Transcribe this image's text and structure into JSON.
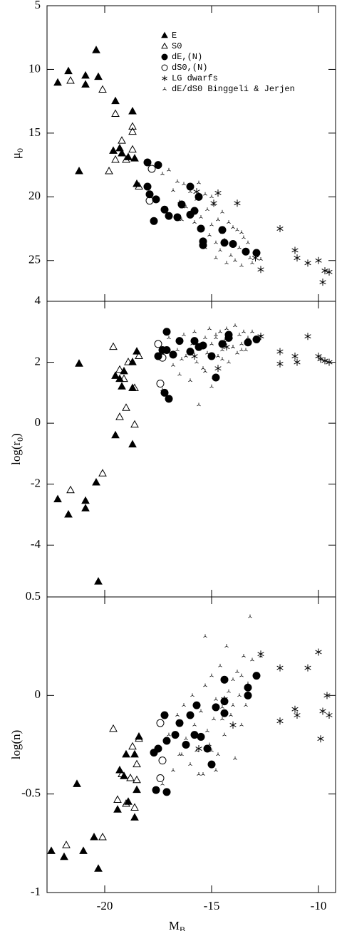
{
  "chart_data": [
    {
      "type": "scatter",
      "ylabel": {
        "text": "μ",
        "sub": "0"
      },
      "xlim": [
        -22.7,
        -9.2
      ],
      "ylim": [
        5,
        28.2
      ],
      "y_inverted": true,
      "yticks": [
        5,
        10,
        15,
        20,
        25
      ],
      "color": "#000000",
      "legend": "top",
      "series": [
        {
          "name": "E",
          "marker": "triangle",
          "filled": true,
          "x": [
            -22.2,
            -21.7,
            -20.9,
            -20.9,
            -20.4,
            -20.3,
            -21.2,
            -19.5,
            -19.6,
            -19.3,
            -19.2,
            -18.7,
            -18.9,
            -18.6,
            -18.5
          ],
          "values": [
            11.05,
            10.15,
            10.5,
            11.2,
            8.5,
            10.6,
            18.0,
            12.5,
            16.4,
            16.2,
            16.6,
            13.3,
            16.9,
            17.0,
            19.0
          ]
        },
        {
          "name": "S0",
          "marker": "triangle",
          "filled": false,
          "x": [
            -21.6,
            -20.1,
            -19.5,
            -19.2,
            -18.7,
            -18.7,
            -18.7,
            -19.0,
            -19.5,
            -19.8,
            -18.4
          ],
          "values": [
            10.9,
            11.6,
            13.5,
            15.6,
            14.5,
            14.9,
            16.3,
            17.1,
            17.1,
            18.0,
            19.2
          ]
        },
        {
          "name": "dE,(N)",
          "marker": "circle",
          "filled": true,
          "x": [
            -18.0,
            -17.5,
            -18.0,
            -17.9,
            -17.6,
            -17.7,
            -17.2,
            -17.0,
            -16.6,
            -16.4,
            -16.0,
            -16.0,
            -15.6,
            -15.8,
            -15.5,
            -15.4,
            -15.4,
            -14.5,
            -14.4,
            -14.0,
            -13.4,
            -12.9
          ],
          "values": [
            17.3,
            17.5,
            19.2,
            19.8,
            20.2,
            21.9,
            21.0,
            21.5,
            21.6,
            20.6,
            21.4,
            19.2,
            20.0,
            21.1,
            22.5,
            23.5,
            23.8,
            22.6,
            23.6,
            23.7,
            24.3,
            24.4
          ]
        },
        {
          "name": "dS0,(N)",
          "marker": "circle",
          "filled": false,
          "x": [
            -17.8,
            -17.9
          ],
          "values": [
            17.8,
            20.3
          ]
        },
        {
          "name": "LG dwarfs",
          "marker": "asterisk",
          "filled": false,
          "x": [
            -11.8,
            -12.7,
            -11.1,
            -11.0,
            -10.5,
            -10.0,
            -9.8,
            -9.7,
            -9.5,
            -15.7,
            -14.9,
            -14.7,
            -13.8,
            -12.95
          ],
          "values": [
            22.5,
            25.7,
            24.2,
            24.8,
            25.2,
            25.0,
            26.7,
            25.8,
            25.9,
            19.6,
            20.5,
            19.7,
            20.5,
            24.8
          ]
        },
        {
          "name": "dE/dS0 Binggeli & Jerjen",
          "marker": "tripod",
          "filled": false,
          "x": [
            -17.3,
            -17.0,
            -16.8,
            -16.6,
            -16.5,
            -16.3,
            -16.2,
            -16.0,
            -15.9,
            -15.8,
            -15.7,
            -15.5,
            -15.4,
            -15.3,
            -15.2,
            -15.1,
            -15.0,
            -14.9,
            -14.8,
            -14.7,
            -14.6,
            -14.5,
            -14.4,
            -14.3,
            -14.2,
            -14.1,
            -14.0,
            -13.9,
            -13.8,
            -13.7,
            -13.6,
            -13.5,
            -13.4,
            -13.3,
            -13.2,
            -13.1,
            -15.6,
            -15.0,
            -14.5,
            -14.0,
            -16.4,
            -15.3,
            -14.8,
            -13.6,
            -12.7
          ],
          "values": [
            18.2,
            17.9,
            19.5,
            18.8,
            20.4,
            19.0,
            20.8,
            19.6,
            21.2,
            22.0,
            20.2,
            21.6,
            22.4,
            19.8,
            21.0,
            23.0,
            22.2,
            20.6,
            23.6,
            21.8,
            24.2,
            22.8,
            23.4,
            25.2,
            22.0,
            24.6,
            23.8,
            25.0,
            22.6,
            24.0,
            25.4,
            23.2,
            24.4,
            23.6,
            24.8,
            25.2,
            18.9,
            20.0,
            21.2,
            22.4,
            21.8,
            24.0,
            24.8,
            22.8,
            24.9
          ]
        }
      ]
    },
    {
      "type": "scatter",
      "ylabel": {
        "text": "log(r",
        "sub": "0",
        "after": ")"
      },
      "xlim": [
        -22.7,
        -9.2
      ],
      "ylim": [
        -5.7,
        4
      ],
      "yticks": [
        4,
        2,
        0,
        -2,
        -4
      ],
      "color": "#000000",
      "series": [
        {
          "marker": "triangle",
          "filled": true,
          "x": [
            -22.2,
            -21.7,
            -20.9,
            -20.9,
            -20.4,
            -20.3,
            -21.2,
            -19.5,
            -19.5,
            -19.3,
            -19.2,
            -18.7,
            -18.7,
            -18.7,
            -18.5,
            -19.1
          ],
          "values": [
            -2.5,
            -3.0,
            -2.55,
            -2.8,
            -1.95,
            -5.2,
            1.95,
            -0.4,
            1.55,
            1.45,
            1.2,
            -0.7,
            1.15,
            2.0,
            2.35,
            1.7
          ]
        },
        {
          "marker": "triangle",
          "filled": false,
          "x": [
            -21.6,
            -20.1,
            -19.6,
            -19.3,
            -19.0,
            -18.6,
            -19.3,
            -19.1,
            -18.9,
            -18.6,
            -18.4
          ],
          "values": [
            -2.2,
            -1.65,
            2.5,
            0.2,
            0.5,
            -0.05,
            1.75,
            1.45,
            2.0,
            1.15,
            2.2
          ]
        },
        {
          "marker": "circle",
          "filled": true,
          "x": [
            -17.1,
            -17.3,
            -17.5,
            -17.1,
            -16.8,
            -16.5,
            -16.0,
            -15.8,
            -15.4,
            -15.0,
            -14.8,
            -14.5,
            -14.2,
            -14.2,
            -13.3,
            -12.9,
            -17.2,
            -17.0,
            -15.6
          ],
          "values": [
            3.0,
            2.4,
            2.2,
            2.4,
            2.25,
            2.7,
            2.35,
            2.7,
            2.55,
            2.2,
            1.5,
            2.6,
            2.9,
            2.8,
            2.65,
            2.75,
            1.0,
            0.8,
            2.5
          ]
        },
        {
          "marker": "circle",
          "filled": false,
          "x": [
            -17.5,
            -17.3,
            -17.4
          ],
          "values": [
            2.6,
            2.15,
            1.3
          ]
        },
        {
          "marker": "asterisk",
          "filled": false,
          "x": [
            -11.8,
            -11.8,
            -11.1,
            -11.0,
            -10.5,
            -10.0,
            -9.9,
            -9.7,
            -9.5,
            -15.8,
            -14.7,
            -14.3,
            -12.7
          ],
          "values": [
            2.35,
            1.95,
            2.2,
            2.0,
            2.85,
            2.2,
            2.1,
            2.05,
            2.0,
            2.2,
            1.8,
            2.5,
            2.85
          ]
        },
        {
          "marker": "tripod",
          "filled": false,
          "x": [
            -17.3,
            -17.0,
            -16.8,
            -16.6,
            -16.5,
            -16.3,
            -16.2,
            -16.0,
            -15.9,
            -15.8,
            -15.7,
            -15.5,
            -15.4,
            -15.3,
            -15.2,
            -15.1,
            -15.0,
            -14.9,
            -14.8,
            -14.7,
            -14.6,
            -14.5,
            -14.4,
            -14.3,
            -14.2,
            -14.1,
            -14.0,
            -13.9,
            -13.8,
            -13.7,
            -13.6,
            -13.5,
            -13.4,
            -13.3,
            -13.2,
            -13.1,
            -15.6,
            -15.0,
            -14.5,
            -14.0,
            -16.4,
            -15.3,
            -14.8,
            -13.6,
            -12.7
          ],
          "values": [
            1.1,
            2.8,
            1.9,
            2.4,
            1.6,
            2.9,
            2.2,
            1.4,
            2.6,
            3.0,
            2.0,
            2.5,
            1.8,
            2.8,
            2.3,
            3.1,
            2.6,
            1.5,
            2.9,
            2.2,
            3.0,
            2.4,
            2.7,
            3.1,
            2.0,
            2.8,
            2.5,
            3.2,
            2.3,
            2.9,
            2.6,
            3.0,
            2.4,
            2.8,
            2.7,
            3.0,
            0.6,
            1.2,
            2.1,
            2.5,
            2.1,
            1.7,
            2.8,
            2.4,
            2.9
          ]
        }
      ]
    },
    {
      "type": "scatter",
      "ylabel": {
        "text": "log(n)"
      },
      "xlabel": {
        "text": "M",
        "sub": "B"
      },
      "xlim": [
        -22.7,
        -9.2
      ],
      "ylim": [
        -1,
        0.5
      ],
      "xticks": [
        -20,
        -15,
        -10
      ],
      "yticks": [
        0.5,
        0,
        -0.5,
        -1
      ],
      "color": "#000000",
      "series": [
        {
          "marker": "triangle",
          "filled": true,
          "x": [
            -22.5,
            -21.9,
            -21.0,
            -20.3,
            -20.5,
            -21.3,
            -19.4,
            -19.3,
            -19.1,
            -18.9,
            -18.6,
            -18.5,
            -18.6,
            -18.4,
            -19.0
          ],
          "values": [
            -0.79,
            -0.82,
            -0.79,
            -0.88,
            -0.72,
            -0.45,
            -0.58,
            -0.38,
            -0.41,
            -0.54,
            -0.62,
            -0.48,
            -0.3,
            -0.21,
            -0.3
          ]
        },
        {
          "marker": "triangle",
          "filled": false,
          "x": [
            -21.8,
            -20.1,
            -19.6,
            -19.4,
            -19.0,
            -18.6,
            -18.5,
            -18.7,
            -18.5,
            -19.2,
            -18.8,
            -18.4
          ],
          "values": [
            -0.76,
            -0.72,
            -0.17,
            -0.53,
            -0.55,
            -0.57,
            -0.43,
            -0.26,
            -0.35,
            -0.4,
            -0.42,
            -0.22
          ]
        },
        {
          "marker": "circle",
          "filled": true,
          "x": [
            -17.2,
            -17.5,
            -17.6,
            -17.1,
            -17.1,
            -17.7,
            -16.7,
            -16.5,
            -16.0,
            -15.7,
            -15.5,
            -15.2,
            -15.0,
            -14.8,
            -14.4,
            -14.4,
            -14.4,
            -13.3,
            -13.3,
            -12.9,
            -15.8,
            -16.2
          ],
          "values": [
            -0.1,
            -0.27,
            -0.48,
            -0.49,
            -0.23,
            -0.29,
            -0.2,
            -0.14,
            -0.1,
            -0.05,
            -0.21,
            -0.27,
            -0.35,
            -0.06,
            -0.09,
            -0.03,
            0.08,
            0.04,
            0.0,
            0.1,
            -0.2,
            -0.25
          ]
        },
        {
          "marker": "circle",
          "filled": false,
          "x": [
            -17.4,
            -17.3,
            -17.4
          ],
          "values": [
            -0.14,
            -0.33,
            -0.42
          ]
        },
        {
          "marker": "asterisk",
          "filled": false,
          "x": [
            -11.8,
            -11.8,
            -11.1,
            -11.0,
            -10.5,
            -10.0,
            -9.9,
            -9.8,
            -9.6,
            -9.5,
            -15.6,
            -14.4,
            -12.7,
            -14.0
          ],
          "values": [
            0.14,
            -0.13,
            -0.07,
            -0.1,
            0.14,
            0.22,
            -0.22,
            -0.08,
            0.0,
            -0.1,
            -0.27,
            -0.02,
            0.21,
            -0.15
          ]
        },
        {
          "marker": "tripod",
          "filled": false,
          "x": [
            -17.3,
            -17.0,
            -16.8,
            -16.6,
            -16.5,
            -16.3,
            -16.2,
            -16.0,
            -15.9,
            -15.8,
            -15.7,
            -15.5,
            -15.4,
            -15.3,
            -15.2,
            -15.1,
            -15.0,
            -14.9,
            -14.8,
            -14.7,
            -14.6,
            -14.5,
            -14.4,
            -14.3,
            -14.2,
            -14.1,
            -14.0,
            -13.9,
            -13.8,
            -13.7,
            -13.6,
            -13.5,
            -13.4,
            -13.3,
            -13.2,
            -13.1,
            -15.6,
            -15.0,
            -14.5,
            -14.0,
            -16.4,
            -15.3,
            -14.8,
            -13.6,
            -12.7
          ],
          "values": [
            -0.45,
            -0.2,
            -0.38,
            -0.1,
            -0.3,
            -0.05,
            -0.22,
            -0.35,
            0.0,
            -0.15,
            -0.28,
            -0.08,
            -0.4,
            0.05,
            -0.18,
            -0.25,
            0.1,
            -0.12,
            -0.02,
            -0.3,
            0.15,
            -0.06,
            -0.2,
            0.25,
            0.02,
            -0.1,
            0.08,
            -0.32,
            0.12,
            0.0,
            -0.15,
            0.2,
            -0.05,
            0.06,
            0.4,
            0.18,
            -0.4,
            -0.28,
            -0.12,
            -0.05,
            -0.3,
            0.3,
            -0.38,
            0.1,
            0.2
          ]
        }
      ]
    }
  ]
}
